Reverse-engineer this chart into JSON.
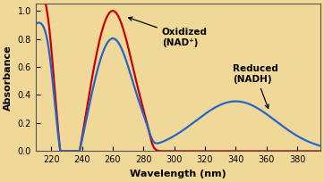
{
  "background_color": "#f0d898",
  "fig_bg_color": "#f0d898",
  "xlim": [
    210,
    395
  ],
  "ylim": [
    0.0,
    1.05
  ],
  "xticks": [
    220,
    240,
    260,
    280,
    300,
    320,
    340,
    360,
    380
  ],
  "yticks": [
    0.0,
    0.2,
    0.4,
    0.6,
    0.8,
    1.0
  ],
  "xlabel": "Wavelength (nm)",
  "ylabel": "Absorbance",
  "nad_color": "#cc0000",
  "nadh_color": "#2266cc",
  "label_oxidized": "Oxidized\n(NAD⁺)",
  "label_reduced": "Reduced\n(NADH)",
  "axis_label_fontsize": 8,
  "tick_fontsize": 7,
  "annotation_fontsize": 7.5
}
